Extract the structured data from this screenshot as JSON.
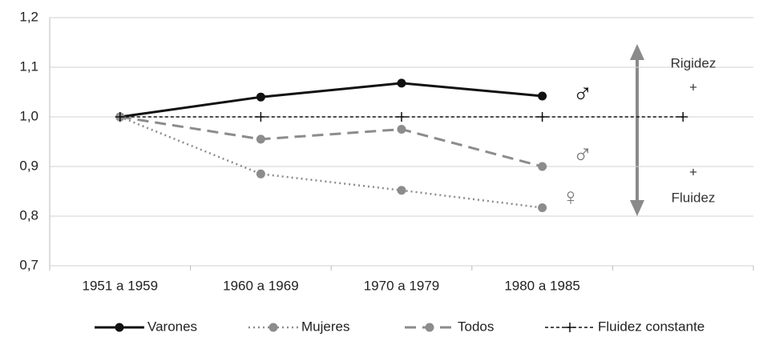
{
  "chart_data": {
    "type": "line",
    "categories": [
      "1951 a 1959",
      "1960 a 1969",
      "1970 a 1979",
      "1980 a 1985",
      null
    ],
    "series": [
      {
        "name": "Varones",
        "color": "#111111",
        "line_style": "solid",
        "marker": "circle",
        "values": [
          1.0,
          1.04,
          1.068,
          1.042,
          null
        ]
      },
      {
        "name": "Mujeres",
        "color": "#8c8c8c",
        "line_style": "dotted",
        "marker": "circle",
        "values": [
          1.0,
          0.885,
          0.852,
          0.817,
          null
        ]
      },
      {
        "name": "Todos",
        "color": "#8c8c8c",
        "line_style": "dashed",
        "marker": "circle",
        "values": [
          1.0,
          0.955,
          0.975,
          0.9,
          null
        ]
      },
      {
        "name": "Fluidez constante",
        "color": "#111111",
        "line_style": "finedash",
        "marker": "plus",
        "values": [
          1.0,
          1.0,
          1.0,
          1.0,
          1.0
        ]
      }
    ],
    "ylim": [
      0.7,
      1.2
    ],
    "yticks": [
      {
        "value": 0.7,
        "label": "0,7"
      },
      {
        "value": 0.8,
        "label": "0,8"
      },
      {
        "value": 0.9,
        "label": "0,9"
      },
      {
        "value": 1.0,
        "label": "1,0"
      },
      {
        "value": 1.1,
        "label": "1,1"
      },
      {
        "value": 1.2,
        "label": "1,2"
      }
    ],
    "grid": true,
    "legend": "bottom",
    "annotations": [
      "Rigidez",
      "+",
      "Fluidez",
      "+",
      "♂",
      "♂",
      "♀"
    ]
  }
}
